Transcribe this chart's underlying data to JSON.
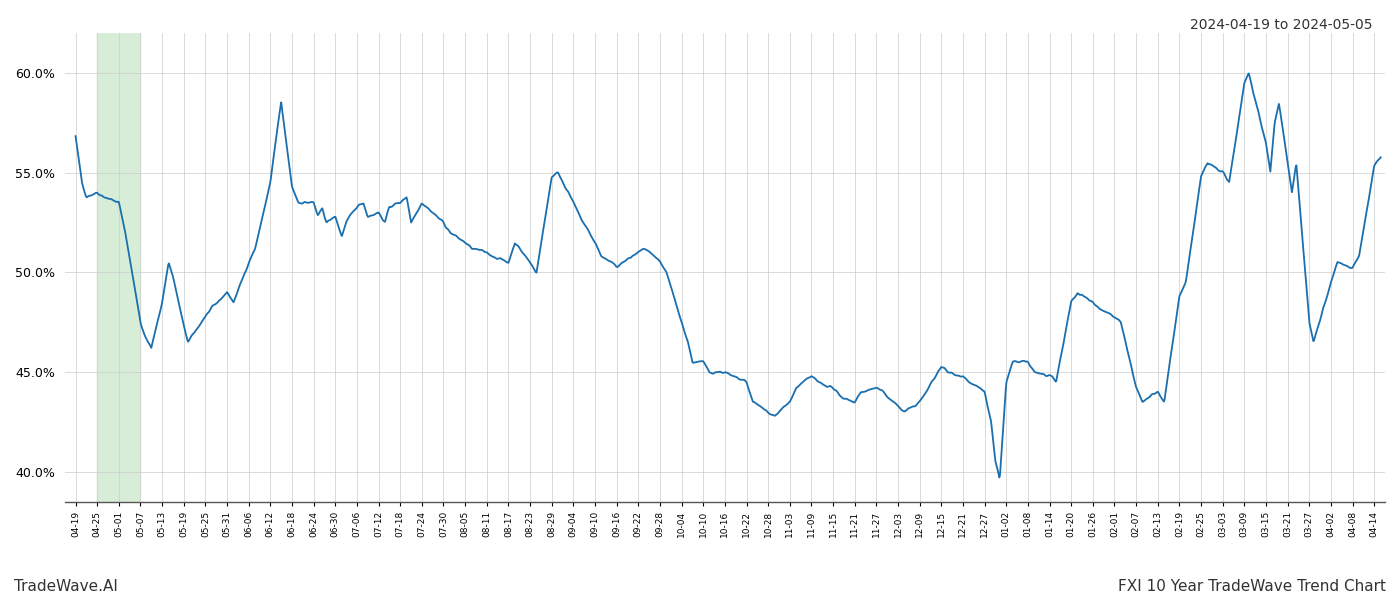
{
  "title_top_right": "2024-04-19 to 2024-05-05",
  "title_bottom_right": "FXI 10 Year TradeWave Trend Chart",
  "title_bottom_left": "TradeWave.AI",
  "line_color": "#1a6faf",
  "line_width": 1.3,
  "background_color": "#ffffff",
  "grid_color": "#cccccc",
  "highlight_color": "#d8edd8",
  "ylim": [
    38.5,
    62.0
  ],
  "yticks": [
    40.0,
    45.0,
    50.0,
    55.0,
    60.0
  ],
  "x_labels": [
    "04-19",
    "04-25",
    "05-01",
    "05-07",
    "05-13",
    "05-19",
    "05-25",
    "05-31",
    "06-06",
    "06-12",
    "06-18",
    "06-24",
    "06-30",
    "07-06",
    "07-12",
    "07-18",
    "07-24",
    "07-30",
    "08-05",
    "08-11",
    "08-17",
    "08-23",
    "08-29",
    "09-04",
    "09-10",
    "09-16",
    "09-22",
    "09-28",
    "10-04",
    "10-10",
    "10-16",
    "10-22",
    "10-28",
    "11-03",
    "11-09",
    "11-15",
    "11-21",
    "11-27",
    "12-03",
    "12-09",
    "12-15",
    "12-21",
    "12-27",
    "01-02",
    "01-08",
    "01-14",
    "01-20",
    "01-26",
    "02-01",
    "02-07",
    "02-13",
    "02-19",
    "02-25",
    "03-03",
    "03-09",
    "03-15",
    "03-21",
    "03-27",
    "04-02",
    "04-08",
    "04-14"
  ],
  "highlight_xstart": 1,
  "highlight_xend": 3
}
